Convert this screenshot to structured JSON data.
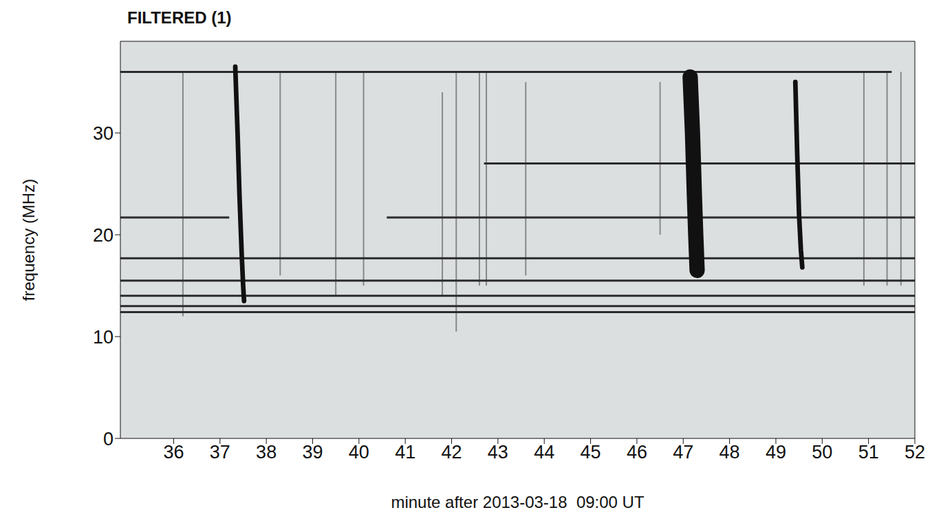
{
  "chart_data": {
    "type": "spectrogram",
    "title": "FILTERED (1)",
    "x_label": "minute after 2013-03-18  09:00 UT",
    "y_label": "frequency (MHz)",
    "xlim": [
      34.85,
      52
    ],
    "xticks": [
      36,
      37,
      38,
      39,
      40,
      41,
      42,
      43,
      44,
      45,
      46,
      47,
      48,
      49,
      50,
      51,
      52
    ],
    "ylim": [
      0,
      39
    ],
    "yticks": [
      0,
      10,
      20,
      30
    ],
    "bursts": {
      "color": "#111111",
      "items": [
        {
          "duration": 0.1,
          "points": [
            [
              37.33,
              36.5
            ],
            [
              37.38,
              30
            ],
            [
              37.42,
              24
            ],
            [
              37.47,
              18
            ],
            [
              37.5,
              15
            ],
            [
              37.52,
              13.5
            ]
          ]
        },
        {
          "duration": 0.33,
          "points": [
            [
              47.15,
              35.5
            ],
            [
              47.2,
              30
            ],
            [
              47.24,
              24
            ],
            [
              47.27,
              20
            ],
            [
              47.3,
              16.5
            ]
          ]
        },
        {
          "duration": 0.1,
          "points": [
            [
              49.42,
              35
            ],
            [
              49.46,
              28
            ],
            [
              49.5,
              22
            ],
            [
              49.54,
              18.5
            ],
            [
              49.57,
              16.8
            ]
          ]
        }
      ]
    },
    "interference": {
      "color": "#2b2b2b",
      "lines": [
        {
          "frequency": 17.7,
          "x": [
            34.85,
            52
          ]
        },
        {
          "frequency": 15.5,
          "x": [
            34.85,
            52
          ]
        },
        {
          "frequency": 14,
          "x": [
            34.85,
            52
          ]
        },
        {
          "frequency": 13,
          "x": [
            34.85,
            52
          ]
        },
        {
          "frequency": 12.4,
          "x": [
            34.85,
            52
          ]
        },
        {
          "frequency": 27,
          "x": [
            42.7,
            52
          ]
        },
        {
          "frequency": 21.7,
          "x": [
            40.6,
            52
          ]
        },
        {
          "frequency": 21.7,
          "x": [
            34.85,
            37.2
          ]
        },
        {
          "frequency": 36,
          "x": [
            34.85,
            51.5
          ]
        }
      ]
    },
    "faint_bursts": {
      "color": "#85898c",
      "lines": [
        {
          "minute": 36.2,
          "f": [
            12,
            36
          ]
        },
        {
          "minute": 38.3,
          "f": [
            16,
            36
          ]
        },
        {
          "minute": 39.5,
          "f": [
            14,
            36
          ]
        },
        {
          "minute": 40.1,
          "f": [
            15,
            36
          ]
        },
        {
          "minute": 41.8,
          "f": [
            14,
            34
          ]
        },
        {
          "minute": 42.1,
          "f": [
            10.5,
            36
          ]
        },
        {
          "minute": 42.6,
          "f": [
            15,
            36
          ]
        },
        {
          "minute": 42.75,
          "f": [
            15,
            36
          ]
        },
        {
          "minute": 43.6,
          "f": [
            16,
            35
          ]
        },
        {
          "minute": 46.5,
          "f": [
            20,
            35
          ]
        },
        {
          "minute": 50.9,
          "f": [
            15,
            36
          ]
        },
        {
          "minute": 51.4,
          "f": [
            15,
            36
          ]
        },
        {
          "minute": 51.7,
          "f": [
            15,
            36
          ]
        }
      ]
    }
  }
}
